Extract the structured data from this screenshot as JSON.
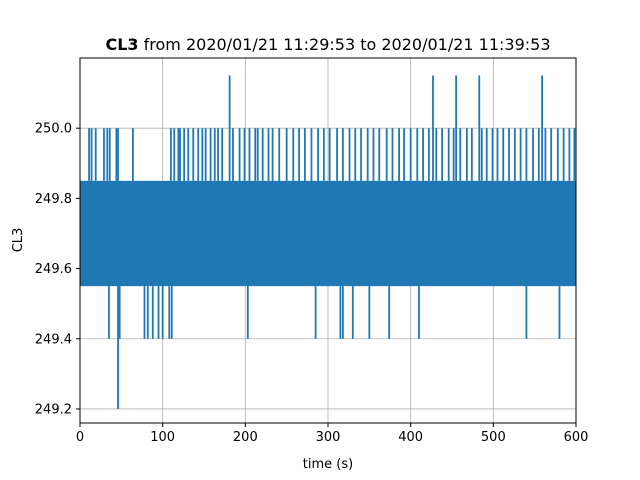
{
  "chart_data": {
    "type": "line",
    "title_bold": "CL3",
    "title_rest": " from 2020/01/21 11:29:53 to 2020/01/21 11:39:53",
    "xlabel": "time (s)",
    "ylabel": "CL3",
    "xlim": [
      0,
      600
    ],
    "ylim": [
      249.16,
      250.2
    ],
    "xticks": [
      0,
      100,
      200,
      300,
      400,
      500,
      600
    ],
    "yticks": [
      249.2,
      249.4,
      249.6,
      249.8,
      250.0
    ],
    "xtick_labels": [
      "0",
      "100",
      "200",
      "300",
      "400",
      "500",
      "600"
    ],
    "ytick_labels": [
      "249.2",
      "249.4",
      "249.6",
      "249.8",
      "250.0"
    ],
    "grid": true,
    "series": [
      {
        "color": "#1f77b4",
        "band": {
          "x_start": 0,
          "x_end": 600,
          "y_low": 249.55,
          "y_high": 249.85
        },
        "spikes_high_250_0": [
          11,
          14,
          19,
          29,
          33,
          36,
          44,
          46,
          64,
          110,
          114,
          119,
          121,
          126,
          131,
          137,
          143,
          148,
          152,
          158,
          163,
          167,
          172,
          185,
          193,
          199,
          205,
          212,
          215,
          221,
          228,
          233,
          241,
          250,
          258,
          265,
          272,
          280,
          288,
          295,
          302,
          311,
          318,
          326,
          333,
          340,
          348,
          355,
          362,
          371,
          378,
          386,
          392,
          400,
          408,
          415,
          422,
          431,
          438,
          446,
          452,
          460,
          468,
          474,
          486,
          492,
          499,
          505,
          512,
          519,
          526,
          533,
          540,
          548,
          555,
          563,
          570,
          578,
          585,
          592,
          598
        ],
        "spikes_high_250_15": [
          181,
          427,
          455,
          483,
          559
        ],
        "dips_249_4": [
          35,
          48,
          78,
          82,
          88,
          95,
          100,
          108,
          111,
          203,
          285,
          315,
          318,
          330,
          350,
          374,
          410,
          540,
          580
        ],
        "dips_249_2": [
          46
        ]
      }
    ]
  }
}
